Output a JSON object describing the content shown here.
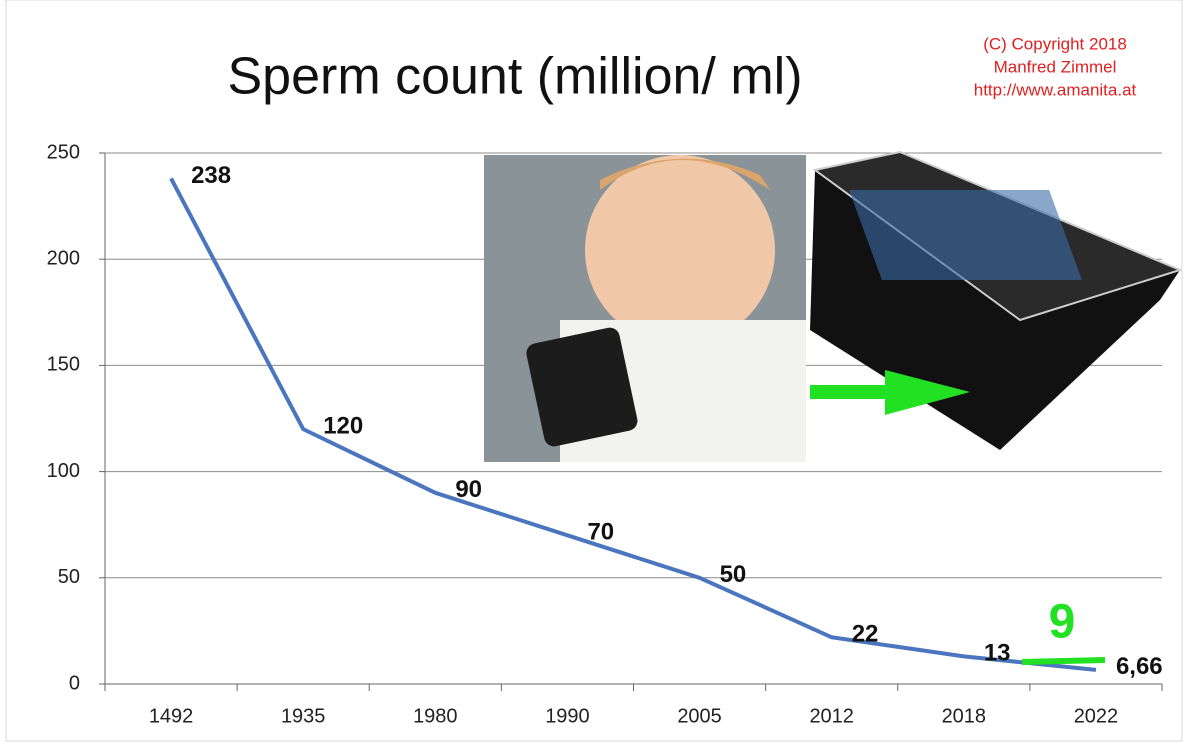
{
  "chart_data": {
    "type": "line",
    "title": "Sperm count (million/ ml)",
    "notes": [
      "(C) Copyright 2018",
      "Manfred Zimmel",
      "http://www.amanita.at"
    ],
    "annotation": "9",
    "categories": [
      "1492",
      "1935",
      "1980",
      "1990",
      "2005",
      "2012",
      "2018",
      "2022"
    ],
    "values": [
      238,
      120,
      90,
      70,
      50,
      22,
      13,
      6.66
    ],
    "value_labels": [
      "238",
      "120",
      "90",
      "70",
      "50",
      "22",
      "13",
      "6,66"
    ],
    "color": "#4a76c0",
    "ylim": [
      0,
      250
    ],
    "yticks": [
      0,
      50,
      100,
      150,
      200,
      250
    ],
    "grid": true
  }
}
